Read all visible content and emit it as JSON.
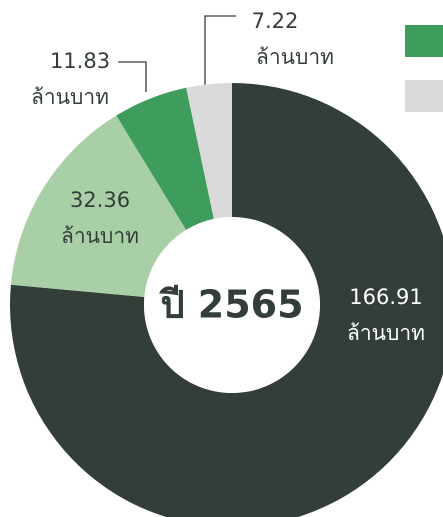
{
  "chart_data": {
    "type": "donut",
    "center_label": "ปี 2565",
    "unit": "ล้านบาท",
    "categories": [
      null,
      null,
      null,
      null
    ],
    "values": [
      166.91,
      32.36,
      11.83,
      7.22
    ],
    "colors": [
      "#333e39",
      "#a9cfa6",
      "#3e9c5d",
      "#dadada"
    ]
  }
}
